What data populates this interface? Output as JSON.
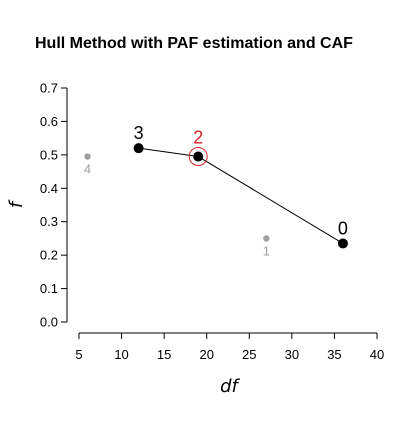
{
  "chart_data": {
    "type": "scatter",
    "title": "Hull Method with PAF estimation and CAF",
    "xlabel": "df",
    "ylabel": "f",
    "xlim": [
      5,
      40
    ],
    "ylim": [
      0,
      0.7
    ],
    "xticks": [
      5,
      10,
      15,
      20,
      25,
      30,
      35,
      40
    ],
    "yticks": [
      0.0,
      0.1,
      0.2,
      0.3,
      0.4,
      0.5,
      0.6,
      0.7
    ],
    "grid": false,
    "points": [
      {
        "label": "0",
        "x": 36,
        "y": 0.235,
        "on_hull": true,
        "selected": false,
        "label_pos": "above"
      },
      {
        "label": "1",
        "x": 27,
        "y": 0.25,
        "on_hull": false,
        "selected": false,
        "label_pos": "below"
      },
      {
        "label": "2",
        "x": 19,
        "y": 0.495,
        "on_hull": true,
        "selected": true,
        "label_pos": "above"
      },
      {
        "label": "3",
        "x": 12,
        "y": 0.52,
        "on_hull": true,
        "selected": false,
        "label_pos": "above"
      },
      {
        "label": "4",
        "x": 6,
        "y": 0.495,
        "on_hull": false,
        "selected": false,
        "label_pos": "below"
      }
    ],
    "hull_order": [
      "3",
      "2",
      "0"
    ],
    "colors": {
      "hull_point": "#000000",
      "other_point": "#a0a0a0",
      "selected_label": "#d8262a",
      "selected_ring": "#d8262a",
      "line": "#000000"
    }
  }
}
